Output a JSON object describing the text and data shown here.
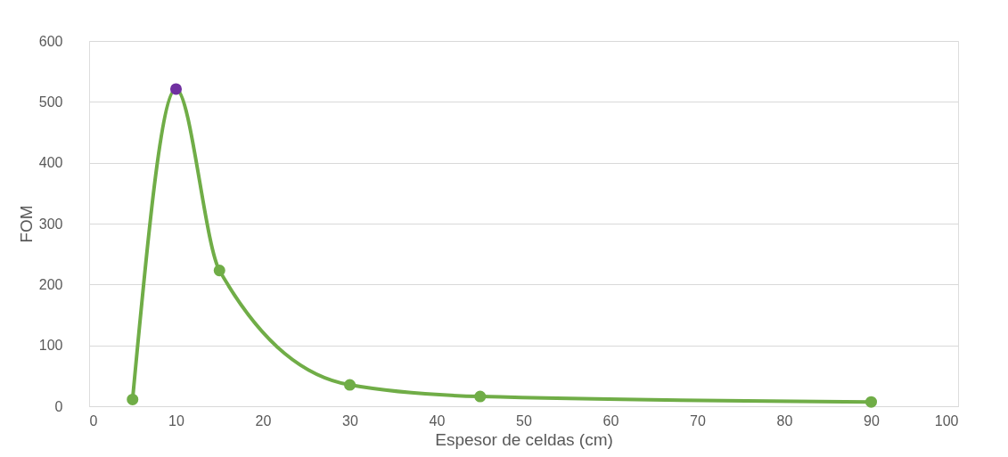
{
  "chart_data": {
    "type": "line",
    "xlabel": "Espesor de celdas (cm)",
    "ylabel": "FOM",
    "x": [
      5,
      10,
      15,
      30,
      45,
      90
    ],
    "series": [
      {
        "color": "#70ad47",
        "colors": [
          "#70ad47",
          "#7030a0",
          "#70ad47",
          "#70ad47",
          "#70ad47",
          "#70ad47"
        ],
        "values": [
          11,
          521,
          223,
          35,
          16,
          7
        ]
      }
    ],
    "xlim": [
      0,
      100
    ],
    "xticks": [
      0,
      10,
      20,
      30,
      40,
      50,
      60,
      70,
      80,
      90,
      100
    ],
    "ylim": [
      0,
      600
    ],
    "yticks": [
      0,
      100,
      200,
      300,
      400,
      500,
      600
    ],
    "grid": "y",
    "legend": false,
    "marker": "circle",
    "line_style": "solid"
  }
}
